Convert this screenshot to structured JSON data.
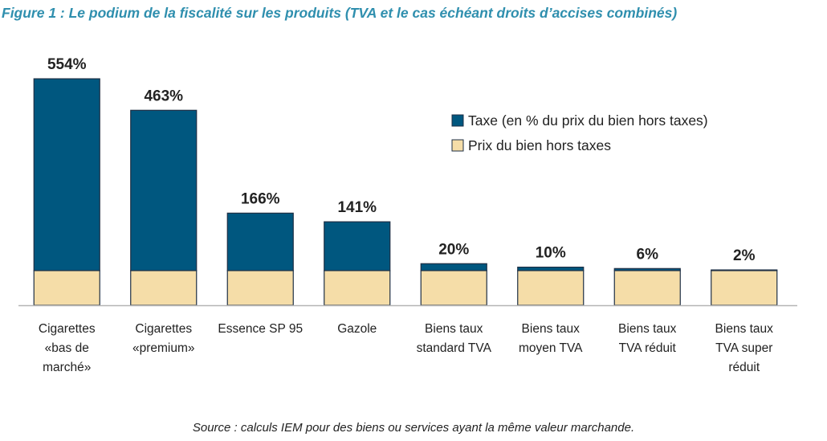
{
  "figure_title": "Figure 1 : Le podium de la fiscalité sur les produits (TVA et le cas échéant droits d’accises combinés)",
  "source_note": "Source : calculs IEM pour des biens ou services ayant la même valeur marchande.",
  "colors": {
    "tax": "#00577f",
    "price": "#f5dda8",
    "border": "#1e2f45",
    "title": "#2f8fae",
    "axis": "#b5b5b5"
  },
  "chart_data": {
    "type": "bar",
    "stacked": true,
    "title": "",
    "xlabel": "",
    "ylabel": "",
    "grid": false,
    "legend_position": "top-right",
    "categories": [
      [
        "Cigarettes",
        "«bas de",
        "marché»"
      ],
      [
        "Cigarettes",
        "«premium»"
      ],
      [
        "Essence SP 95"
      ],
      [
        "Gazole"
      ],
      [
        "Biens taux",
        "standard TVA"
      ],
      [
        "Biens taux",
        "moyen TVA"
      ],
      [
        "Biens taux",
        "TVA réduit"
      ],
      [
        "Biens taux",
        "TVA super",
        "réduit"
      ]
    ],
    "series": [
      {
        "name": "Prix du bien hors taxes",
        "values": [
          100,
          100,
          100,
          100,
          100,
          100,
          100,
          100
        ]
      },
      {
        "name": "Taxe (en % du prix du bien hors taxes)",
        "values": [
          554,
          463,
          166,
          141,
          20,
          10,
          6,
          2
        ]
      }
    ],
    "data_labels": [
      "554%",
      "463%",
      "166%",
      "141%",
      "20%",
      "10%",
      "6%",
      "2%"
    ],
    "ylim": [
      0,
      682
    ]
  }
}
